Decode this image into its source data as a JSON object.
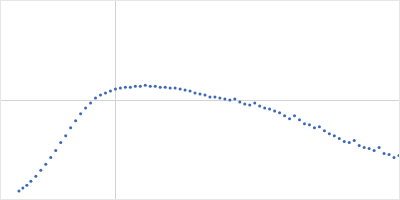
{
  "chart_data": {
    "type": "scatter",
    "color": "#3a68b8",
    "marker": "circle",
    "grid": true,
    "tick_labels": false,
    "xlim": [
      0,
      4
    ],
    "xticks": [
      1.15
    ],
    "ylim": [
      0,
      2
    ],
    "yticks": [
      1
    ],
    "x": [
      0.18,
      0.22,
      0.26,
      0.3,
      0.35,
      0.4,
      0.45,
      0.5,
      0.55,
      0.6,
      0.65,
      0.7,
      0.75,
      0.8,
      0.85,
      0.9,
      0.95,
      1.0,
      1.05,
      1.1,
      1.15,
      1.2,
      1.25,
      1.3,
      1.35,
      1.4,
      1.45,
      1.5,
      1.55,
      1.6,
      1.65,
      1.7,
      1.75,
      1.8,
      1.85,
      1.9,
      1.95,
      2.0,
      2.05,
      2.1,
      2.15,
      2.2,
      2.25,
      2.3,
      2.35,
      2.4,
      2.45,
      2.5,
      2.55,
      2.6,
      2.65,
      2.7,
      2.75,
      2.8,
      2.85,
      2.9,
      2.95,
      3.0,
      3.05,
      3.1,
      3.15,
      3.2,
      3.25,
      3.3,
      3.35,
      3.4,
      3.45,
      3.5,
      3.55,
      3.6,
      3.65,
      3.7,
      3.75,
      3.8,
      3.85,
      3.9,
      3.95,
      4.0
    ],
    "values": [
      0.08,
      0.11,
      0.14,
      0.18,
      0.23,
      0.29,
      0.35,
      0.42,
      0.49,
      0.57,
      0.64,
      0.72,
      0.79,
      0.86,
      0.92,
      0.97,
      1.02,
      1.05,
      1.07,
      1.09,
      1.11,
      1.12,
      1.13,
      1.13,
      1.14,
      1.14,
      1.15,
      1.14,
      1.14,
      1.13,
      1.13,
      1.12,
      1.12,
      1.11,
      1.1,
      1.09,
      1.07,
      1.06,
      1.05,
      1.03,
      1.03,
      1.02,
      1.01,
      1.0,
      1.01,
      0.98,
      0.96,
      0.95,
      0.97,
      0.94,
      0.92,
      0.91,
      0.89,
      0.87,
      0.84,
      0.81,
      0.84,
      0.8,
      0.76,
      0.75,
      0.72,
      0.73,
      0.69,
      0.66,
      0.64,
      0.61,
      0.58,
      0.57,
      0.59,
      0.54,
      0.52,
      0.51,
      0.49,
      0.52,
      0.46,
      0.45,
      0.42,
      0.44
    ]
  }
}
